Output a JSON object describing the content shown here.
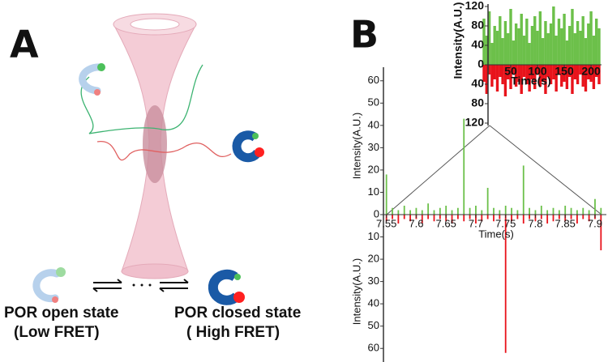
{
  "panels": {
    "a_label": "A",
    "b_label": "B",
    "open_state": "POR open state",
    "open_fret": "(Low FRET)",
    "closed_state": "POR closed state",
    "closed_fret": "( High FRET)"
  },
  "chart_data": [
    {
      "type": "bar",
      "y_label": "Intensity(A.U.)",
      "x_label": "Time(s)",
      "x": [
        0,
        5,
        10,
        15,
        20,
        25,
        30,
        35,
        40,
        45,
        50,
        55,
        60,
        65,
        70,
        75,
        80,
        85,
        90,
        95,
        100,
        105,
        110,
        115,
        120,
        125,
        130,
        135,
        140,
        145,
        150,
        155,
        160,
        165,
        170,
        175,
        180,
        185,
        190,
        195,
        200,
        205,
        210,
        215
      ],
      "xlim": [
        0,
        215
      ],
      "xticks": [
        50,
        100,
        150,
        200
      ],
      "ylim": [
        0,
        120
      ],
      "yticks": [
        0,
        40,
        80,
        120
      ],
      "y2lim": [
        0,
        120
      ],
      "y2ticks": [
        40,
        80,
        120
      ],
      "y2_inverted": true,
      "series": [
        {
          "color": "#6cc04a",
          "values": [
            95,
            60,
            110,
            45,
            80,
            70,
            100,
            55,
            90,
            65,
            115,
            50,
            85,
            75,
            105,
            60,
            95,
            45,
            80,
            100,
            70,
            110,
            55,
            90,
            65,
            85,
            120,
            60,
            95,
            75,
            105,
            50,
            80,
            115,
            65,
            90,
            70,
            100,
            55,
            85,
            110,
            60,
            95,
            75
          ]
        },
        {
          "color": "#e8131b",
          "axis": "y2",
          "values": [
            35,
            60,
            20,
            45,
            30,
            55,
            25,
            40,
            65,
            30,
            50,
            20,
            45,
            35,
            60,
            25,
            40,
            55,
            30,
            50,
            20,
            45,
            35,
            60,
            25,
            40,
            30,
            55,
            20,
            45,
            35,
            50,
            25,
            60,
            30,
            40,
            20,
            45,
            55,
            30,
            35,
            50,
            25,
            40
          ]
        }
      ]
    },
    {
      "type": "bar",
      "y_label": "Intensity(A.U.)",
      "y2_label": "Intensity(A.U.)",
      "x_label": "Time(s)",
      "x": [
        7.55,
        7.56,
        7.57,
        7.58,
        7.59,
        7.6,
        7.61,
        7.62,
        7.63,
        7.64,
        7.65,
        7.66,
        7.67,
        7.68,
        7.69,
        7.7,
        7.71,
        7.72,
        7.73,
        7.74,
        7.75,
        7.76,
        7.77,
        7.78,
        7.79,
        7.8,
        7.81,
        7.82,
        7.83,
        7.84,
        7.85,
        7.86,
        7.87,
        7.88,
        7.89,
        7.9,
        7.91
      ],
      "xlim": [
        7.545,
        7.915
      ],
      "xticks": [
        7.55,
        7.6,
        7.65,
        7.7,
        7.75,
        7.8,
        7.85,
        7.9
      ],
      "ylim": [
        0,
        65
      ],
      "yticks": [
        0,
        10,
        20,
        30,
        40,
        50,
        60
      ],
      "y2lim": [
        0,
        65
      ],
      "y2ticks": [
        10,
        20,
        30,
        40,
        50,
        60
      ],
      "y2_inverted": true,
      "series": [
        {
          "color": "#6cc04a",
          "values": [
            18,
            3,
            2,
            4,
            2,
            3,
            2,
            5,
            2,
            3,
            4,
            2,
            3,
            43,
            3,
            4,
            2,
            12,
            3,
            2,
            4,
            3,
            2,
            22,
            3,
            2,
            4,
            2,
            3,
            2,
            4,
            3,
            2,
            3,
            2,
            7,
            3
          ]
        },
        {
          "color": "#e8131b",
          "axis": "y2",
          "values": [
            3,
            2,
            4,
            2,
            3,
            2,
            4,
            2,
            3,
            2,
            3,
            4,
            2,
            3,
            2,
            4,
            3,
            2,
            3,
            2,
            62,
            3,
            2,
            4,
            2,
            3,
            2,
            4,
            3,
            2,
            3,
            2,
            4,
            2,
            3,
            2,
            16
          ]
        }
      ]
    }
  ]
}
